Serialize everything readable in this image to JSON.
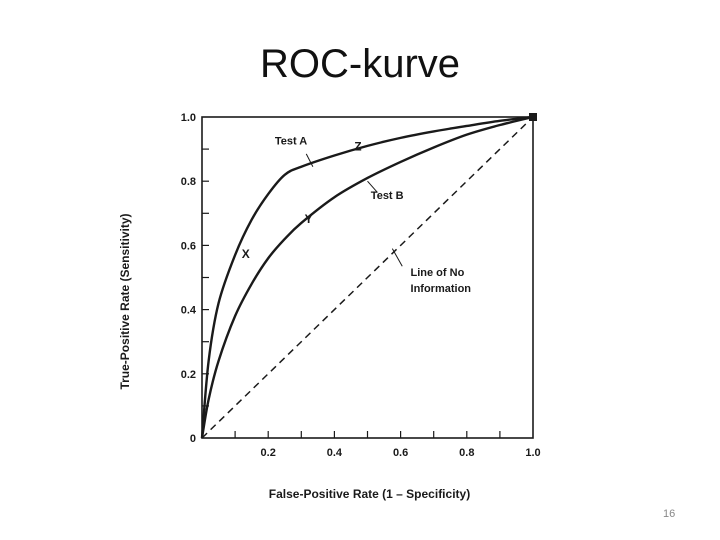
{
  "slide": {
    "title": "ROC-kurve",
    "page_number": "16"
  },
  "chart_data": {
    "type": "line",
    "xlabel": "False-Positive Rate (1 – Specificity)",
    "ylabel": "True-Positive Rate (Sensitivity)",
    "xlim": [
      0,
      1
    ],
    "ylim": [
      0,
      1
    ],
    "x_ticks": [
      "0.2",
      "0.4",
      "0.6",
      "0.8",
      "1.0"
    ],
    "y_ticks": [
      "0",
      "0.2",
      "0.4",
      "0.6",
      "0.8",
      "1.0"
    ],
    "grid": false,
    "series": [
      {
        "name": "Test A",
        "style": "solid",
        "x": [
          0,
          0.02,
          0.05,
          0.1,
          0.15,
          0.2,
          0.25,
          0.3,
          0.4,
          0.5,
          0.6,
          0.7,
          0.8,
          0.9,
          1.0
        ],
        "y": [
          0,
          0.24,
          0.42,
          0.57,
          0.68,
          0.76,
          0.82,
          0.845,
          0.88,
          0.91,
          0.935,
          0.955,
          0.972,
          0.988,
          1.0
        ]
      },
      {
        "name": "Test B",
        "style": "solid",
        "x": [
          0,
          0.02,
          0.05,
          0.1,
          0.15,
          0.2,
          0.25,
          0.3,
          0.4,
          0.5,
          0.6,
          0.7,
          0.8,
          0.9,
          1.0
        ],
        "y": [
          0,
          0.12,
          0.24,
          0.38,
          0.48,
          0.56,
          0.62,
          0.67,
          0.75,
          0.81,
          0.86,
          0.905,
          0.945,
          0.975,
          1.0
        ]
      },
      {
        "name": "Line of No Information",
        "style": "dashed",
        "x": [
          0,
          1
        ],
        "y": [
          0,
          1
        ]
      }
    ],
    "annotations": [
      {
        "text": "Test A",
        "x": 0.22,
        "y": 0.915
      },
      {
        "text": "Test B",
        "x": 0.51,
        "y": 0.745
      },
      {
        "text": "Line of No",
        "x": 0.63,
        "y": 0.505
      },
      {
        "text": "Information",
        "x": 0.63,
        "y": 0.455
      },
      {
        "text": "X",
        "x": 0.12,
        "y": 0.56
      },
      {
        "text": "Y",
        "x": 0.31,
        "y": 0.67
      },
      {
        "text": "Z",
        "x": 0.46,
        "y": 0.895
      }
    ]
  }
}
